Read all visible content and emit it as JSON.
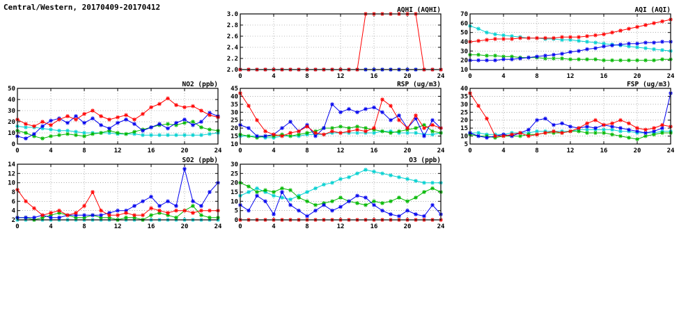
{
  "page": {
    "title": "Central/Western, 20170409-20170412"
  },
  "colors": {
    "red": "#ff0000",
    "blue": "#0000ee",
    "green": "#00b800",
    "cyan": "#00d0d0"
  },
  "chart_data": [
    {
      "id": "aqhi",
      "type": "line",
      "title": "AQHI (AQHI)",
      "xlim": [
        0,
        24
      ],
      "xticks": [
        0,
        4,
        8,
        12,
        16,
        20,
        24
      ],
      "ylim": [
        2.0,
        3.0
      ],
      "yticks": [
        2.0,
        2.2,
        2.4,
        2.6,
        2.8,
        3.0
      ],
      "ydp": 1,
      "x": [
        0,
        1,
        2,
        3,
        4,
        5,
        6,
        7,
        8,
        9,
        10,
        11,
        12,
        13,
        14,
        15,
        16,
        17,
        18,
        19,
        20,
        21,
        22,
        23,
        24
      ],
      "series": [
        {
          "name": "cyan",
          "color_key": "cyan",
          "values": [
            2,
            2,
            2,
            2,
            2,
            2,
            2,
            2,
            2,
            2,
            2,
            2,
            2,
            2,
            2,
            2,
            2,
            2,
            2,
            2,
            2,
            2,
            2,
            2,
            2
          ]
        },
        {
          "name": "green",
          "color_key": "green",
          "values": [
            2,
            2,
            2,
            2,
            2,
            2,
            2,
            2,
            2,
            2,
            2,
            2,
            2,
            2,
            2,
            2,
            2,
            2,
            2,
            2,
            2,
            2,
            2,
            2,
            2
          ]
        },
        {
          "name": "blue",
          "color_key": "blue",
          "values": [
            2,
            2,
            2,
            2,
            2,
            2,
            2,
            2,
            2,
            2,
            2,
            2,
            2,
            2,
            2,
            2,
            2,
            2,
            2,
            2,
            2,
            2,
            2,
            2,
            2
          ]
        },
        {
          "name": "red",
          "color_key": "red",
          "values": [
            2,
            2,
            2,
            2,
            2,
            2,
            2,
            2,
            2,
            2,
            2,
            2,
            2,
            2,
            2,
            3,
            3,
            3,
            3,
            3,
            3,
            3,
            2,
            2,
            2
          ]
        }
      ]
    },
    {
      "id": "aqi",
      "type": "line",
      "title": "AQI (AQI)",
      "xlim": [
        0,
        24
      ],
      "xticks": [
        0,
        4,
        8,
        12,
        16,
        20,
        24
      ],
      "ylim": [
        10,
        70
      ],
      "yticks": [
        10,
        20,
        30,
        40,
        50,
        60,
        70
      ],
      "ydp": 0,
      "x": [
        0,
        1,
        2,
        3,
        4,
        5,
        6,
        7,
        8,
        9,
        10,
        11,
        12,
        13,
        14,
        15,
        16,
        17,
        18,
        19,
        20,
        21,
        22,
        23,
        24
      ],
      "series": [
        {
          "name": "cyan",
          "color_key": "cyan",
          "values": [
            57,
            54,
            50,
            48,
            47,
            46,
            45,
            44,
            44,
            43,
            43,
            42,
            42,
            41,
            40,
            39,
            38,
            37,
            36,
            35,
            34,
            33,
            32,
            31,
            30
          ]
        },
        {
          "name": "green",
          "color_key": "green",
          "values": [
            26,
            26,
            25,
            25,
            24,
            24,
            23,
            23,
            23,
            22,
            22,
            22,
            21,
            21,
            21,
            21,
            20,
            20,
            20,
            20,
            20,
            20,
            20,
            21,
            21
          ]
        },
        {
          "name": "blue",
          "color_key": "blue",
          "values": [
            20,
            20,
            20,
            20,
            21,
            21,
            22,
            23,
            24,
            25,
            26,
            27,
            29,
            30,
            32,
            33,
            35,
            36,
            37,
            38,
            38,
            39,
            39,
            40,
            40
          ]
        },
        {
          "name": "red",
          "color_key": "red",
          "values": [
            40,
            41,
            42,
            43,
            43,
            43,
            44,
            44,
            44,
            44,
            44,
            45,
            45,
            45,
            46,
            47,
            48,
            50,
            52,
            54,
            56,
            58,
            60,
            62,
            64
          ]
        }
      ]
    },
    {
      "id": "no2",
      "type": "line",
      "title": "NO2 (ppb)",
      "xlim": [
        0,
        24
      ],
      "xticks": [
        0,
        4,
        8,
        12,
        16,
        20,
        24
      ],
      "ylim": [
        0,
        50
      ],
      "yticks": [
        0,
        10,
        20,
        30,
        40,
        50
      ],
      "ydp": 0,
      "x": [
        0,
        1,
        2,
        3,
        4,
        5,
        6,
        7,
        8,
        9,
        10,
        11,
        12,
        13,
        14,
        15,
        16,
        17,
        18,
        19,
        20,
        21,
        22,
        23,
        24
      ],
      "series": [
        {
          "name": "cyan",
          "color_key": "cyan",
          "values": [
            16,
            15,
            15,
            14,
            13,
            12,
            12,
            11,
            10,
            10,
            10,
            10,
            9,
            9,
            9,
            8,
            8,
            8,
            8,
            8,
            8,
            8,
            8,
            9,
            10
          ]
        },
        {
          "name": "green",
          "color_key": "green",
          "values": [
            12,
            10,
            7,
            5,
            7,
            8,
            9,
            8,
            7,
            9,
            10,
            12,
            10,
            9,
            11,
            13,
            15,
            17,
            18,
            17,
            19,
            20,
            15,
            13,
            12
          ]
        },
        {
          "name": "blue",
          "color_key": "blue",
          "values": [
            7,
            5,
            9,
            16,
            21,
            23,
            19,
            25,
            19,
            23,
            17,
            14,
            19,
            22,
            18,
            12,
            15,
            18,
            14,
            19,
            22,
            17,
            20,
            28,
            25
          ]
        },
        {
          "name": "red",
          "color_key": "red",
          "values": [
            22,
            18,
            16,
            20,
            17,
            22,
            25,
            22,
            27,
            30,
            25,
            22,
            24,
            26,
            22,
            27,
            33,
            36,
            41,
            35,
            33,
            34,
            30,
            26,
            24
          ]
        }
      ]
    },
    {
      "id": "rsp",
      "type": "line",
      "title": "RSP (ug/m3)",
      "xlim": [
        0,
        24
      ],
      "xticks": [
        0,
        4,
        8,
        12,
        16,
        20,
        24
      ],
      "ylim": [
        10,
        45
      ],
      "yticks": [
        10,
        15,
        20,
        25,
        30,
        35,
        40,
        45
      ],
      "ydp": 0,
      "x": [
        0,
        1,
        2,
        3,
        4,
        5,
        6,
        7,
        8,
        9,
        10,
        11,
        12,
        13,
        14,
        15,
        16,
        17,
        18,
        19,
        20,
        21,
        22,
        23,
        24
      ],
      "series": [
        {
          "name": "cyan",
          "color_key": "cyan",
          "values": [
            15,
            15,
            15,
            14,
            14,
            15,
            15,
            15,
            16,
            16,
            16,
            17,
            17,
            17,
            17,
            17,
            17,
            18,
            18,
            17,
            17,
            17,
            16,
            16,
            17
          ]
        },
        {
          "name": "green",
          "color_key": "green",
          "values": [
            16,
            15,
            14,
            15,
            15,
            16,
            15,
            16,
            17,
            18,
            20,
            20,
            21,
            20,
            21,
            20,
            19,
            18,
            17,
            18,
            19,
            20,
            22,
            18,
            17
          ]
        },
        {
          "name": "blue",
          "color_key": "blue",
          "values": [
            22,
            20,
            15,
            15,
            16,
            20,
            24,
            18,
            22,
            15,
            20,
            35,
            30,
            32,
            30,
            32,
            33,
            30,
            25,
            28,
            20,
            26,
            15,
            25,
            20
          ]
        },
        {
          "name": "red",
          "color_key": "red",
          "values": [
            42,
            34,
            25,
            18,
            16,
            15,
            17,
            18,
            21,
            17,
            16,
            18,
            17,
            18,
            19,
            18,
            20,
            38,
            34,
            25,
            20,
            28,
            20,
            22,
            20
          ]
        }
      ]
    },
    {
      "id": "fsp",
      "type": "line",
      "title": "FSP (ug/m3)",
      "xlim": [
        0,
        24
      ],
      "xticks": [
        0,
        4,
        8,
        12,
        16,
        20,
        24
      ],
      "ylim": [
        5,
        40
      ],
      "yticks": [
        5,
        10,
        15,
        20,
        25,
        30,
        35,
        40
      ],
      "ydp": 0,
      "x": [
        0,
        1,
        2,
        3,
        4,
        5,
        6,
        7,
        8,
        9,
        10,
        11,
        12,
        13,
        14,
        15,
        16,
        17,
        18,
        19,
        20,
        21,
        22,
        23,
        24
      ],
      "series": [
        {
          "name": "cyan",
          "color_key": "cyan",
          "values": [
            12,
            12,
            11,
            11,
            11,
            12,
            12,
            12,
            13,
            13,
            13,
            13,
            13,
            14,
            14,
            14,
            14,
            14,
            13,
            13,
            12,
            12,
            12,
            13,
            13
          ]
        },
        {
          "name": "green",
          "color_key": "green",
          "values": [
            11,
            10,
            10,
            9,
            10,
            10,
            10,
            11,
            11,
            12,
            12,
            12,
            13,
            13,
            12,
            12,
            12,
            11,
            10,
            9,
            8,
            10,
            11,
            12,
            12
          ]
        },
        {
          "name": "blue",
          "color_key": "blue",
          "values": [
            12,
            10,
            9,
            10,
            11,
            10,
            12,
            14,
            20,
            21,
            17,
            18,
            16,
            15,
            16,
            15,
            17,
            16,
            15,
            14,
            13,
            12,
            13,
            15,
            37
          ]
        },
        {
          "name": "red",
          "color_key": "red",
          "values": [
            37,
            29,
            21,
            10,
            10,
            11,
            12,
            10,
            11,
            12,
            13,
            12,
            13,
            15,
            18,
            20,
            17,
            18,
            20,
            18,
            15,
            14,
            15,
            17,
            16
          ]
        }
      ]
    },
    {
      "id": "so2",
      "type": "line",
      "title": "SO2 (ppb)",
      "xlim": [
        0,
        24
      ],
      "xticks": [
        0,
        4,
        8,
        12,
        16,
        20,
        24
      ],
      "ylim": [
        2,
        14
      ],
      "yticks": [
        2,
        4,
        6,
        8,
        10,
        12,
        14
      ],
      "ydp": 0,
      "x": [
        0,
        1,
        2,
        3,
        4,
        5,
        6,
        7,
        8,
        9,
        10,
        11,
        12,
        13,
        14,
        15,
        16,
        17,
        18,
        19,
        20,
        21,
        22,
        23,
        24
      ],
      "series": [
        {
          "name": "cyan",
          "color_key": "cyan",
          "values": [
            2,
            2,
            2,
            2,
            2,
            2,
            2,
            2,
            2,
            2,
            2,
            2,
            2,
            2,
            2,
            2,
            2,
            2,
            2,
            2,
            2,
            2,
            2,
            2,
            2
          ]
        },
        {
          "name": "green",
          "color_key": "green",
          "values": [
            2.5,
            2.5,
            2,
            2.5,
            3,
            3.5,
            3,
            2.5,
            2.5,
            3,
            2.5,
            2.5,
            2,
            2.5,
            2.5,
            2,
            3,
            3.5,
            3,
            2.5,
            4,
            5,
            3,
            2.5,
            2.5
          ]
        },
        {
          "name": "blue",
          "color_key": "blue",
          "values": [
            2.5,
            2.5,
            2.5,
            3,
            2.5,
            2.5,
            3,
            3,
            3,
            3,
            3,
            3.5,
            4,
            4,
            5,
            6,
            7,
            5,
            6,
            5,
            13,
            6,
            5,
            8,
            10
          ]
        },
        {
          "name": "red",
          "color_key": "red",
          "values": [
            8.5,
            6,
            4.5,
            3,
            3.5,
            4,
            3,
            3.5,
            5,
            8,
            4,
            3,
            3,
            3.5,
            3,
            3,
            4.5,
            4,
            3.5,
            4,
            4,
            3.5,
            4,
            4,
            4
          ]
        }
      ]
    },
    {
      "id": "o3",
      "type": "line",
      "title": "O3 (ppb)",
      "xlim": [
        0,
        24
      ],
      "xticks": [
        0,
        4,
        8,
        12,
        16,
        20,
        24
      ],
      "ylim": [
        0,
        30
      ],
      "yticks": [
        0,
        5,
        10,
        15,
        20,
        25,
        30
      ],
      "ydp": 0,
      "x": [
        0,
        1,
        2,
        3,
        4,
        5,
        6,
        7,
        8,
        9,
        10,
        11,
        12,
        13,
        14,
        15,
        16,
        17,
        18,
        19,
        20,
        21,
        22,
        23,
        24
      ],
      "series": [
        {
          "name": "cyan",
          "color_key": "cyan",
          "values": [
            13,
            15,
            17,
            15,
            13,
            12,
            11,
            13,
            15,
            17,
            19,
            20,
            22,
            23,
            25,
            27,
            26,
            25,
            24,
            23,
            22,
            21,
            20,
            20,
            20
          ]
        },
        {
          "name": "green",
          "color_key": "green",
          "values": [
            20,
            18,
            15,
            16,
            15,
            17,
            16,
            12,
            10,
            8,
            9,
            10,
            12,
            10,
            9,
            8,
            10,
            9,
            10,
            12,
            10,
            12,
            15,
            17,
            15
          ]
        },
        {
          "name": "blue",
          "color_key": "blue",
          "values": [
            8,
            5,
            13,
            10,
            3,
            15,
            8,
            5,
            2,
            5,
            8,
            5,
            7,
            10,
            13,
            12,
            8,
            5,
            3,
            2,
            5,
            3,
            2,
            8,
            3
          ]
        },
        {
          "name": "red",
          "color_key": "red",
          "values": [
            0,
            0,
            0,
            0,
            0,
            0,
            0,
            0,
            0,
            0,
            0,
            0,
            0,
            0,
            0,
            0,
            0,
            0,
            0,
            0,
            0,
            0,
            0,
            0,
            0
          ]
        }
      ]
    }
  ]
}
